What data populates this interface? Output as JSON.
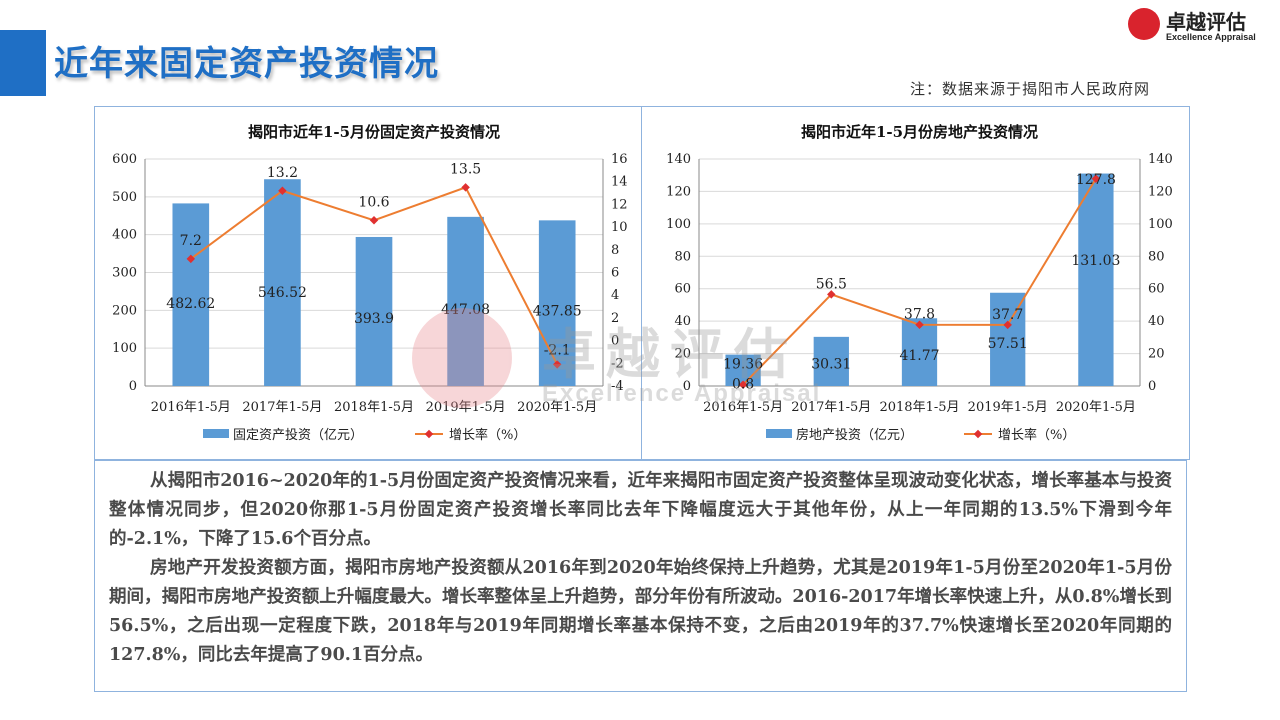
{
  "header": {
    "title": "近年来固定资产投资情况",
    "note": "注：数据来源于揭阳市人民政府网"
  },
  "logo": {
    "cn": "卓越评估",
    "en": "Excellence Appraisal",
    "icon": "logo-mark-icon"
  },
  "watermark": {
    "cn": "卓越评估",
    "en": "Excellence Appraisal"
  },
  "colors": {
    "accent": "#1f6fc5",
    "bar": "#5b9bd5",
    "line": "#ed7d31",
    "marker": "#e03030",
    "border": "#8fb3de"
  },
  "chart_data": [
    {
      "type": "bar",
      "title": "揭阳市近年1-5月份固定资产投资情况",
      "categories": [
        "2016年1-5月",
        "2017年1-5月",
        "2018年1-5月",
        "2019年1-5月",
        "2020年1-5月"
      ],
      "ylim": [
        0,
        600
      ],
      "yticks": [
        "0",
        "100",
        "200",
        "300",
        "400",
        "500",
        "600"
      ],
      "y2lim": [
        -4,
        16
      ],
      "y2ticks": [
        "-4",
        "-2",
        "0",
        "2",
        "4",
        "6",
        "8",
        "10",
        "12",
        "14",
        "16"
      ],
      "grid": true,
      "legend_position": "bottom",
      "series": [
        {
          "name": "固定资产投资（亿元）",
          "kind": "bar",
          "axis": "left",
          "values": [
            482.62,
            546.52,
            393.9,
            447.08,
            437.85
          ],
          "labels": [
            "482.62",
            "546.52",
            "393.9",
            "447.08",
            "437.85"
          ]
        },
        {
          "name": "增长率（%）",
          "kind": "line",
          "axis": "right",
          "values": [
            7.2,
            13.2,
            10.6,
            13.5,
            -2.1
          ],
          "labels": [
            "7.2",
            "13.2",
            "10.6",
            "13.5",
            "-2.1"
          ]
        }
      ]
    },
    {
      "type": "bar",
      "title": "揭阳市近年1-5月份房地产投资情况",
      "categories": [
        "2016年1-5月",
        "2017年1-5月",
        "2018年1-5月",
        "2019年1-5月",
        "2020年1-5月"
      ],
      "ylim": [
        0,
        140
      ],
      "yticks": [
        "0",
        "20",
        "40",
        "60",
        "80",
        "100",
        "120",
        "140"
      ],
      "y2lim": [
        0,
        140
      ],
      "y2ticks": [
        "0",
        "20",
        "40",
        "60",
        "80",
        "100",
        "120",
        "140"
      ],
      "grid": true,
      "legend_position": "bottom",
      "series": [
        {
          "name": "房地产投资（亿元）",
          "kind": "bar",
          "axis": "left",
          "values": [
            19.36,
            30.31,
            41.77,
            57.51,
            131.03
          ],
          "labels": [
            "19.36",
            "30.31",
            "41.77",
            "57.51",
            "131.03"
          ]
        },
        {
          "name": "增长率（%）",
          "kind": "line",
          "axis": "right",
          "values": [
            0.8,
            56.5,
            37.8,
            37.7,
            127.8
          ],
          "labels": [
            "0.8",
            "56.5",
            "37.8",
            "37.7",
            "127.8"
          ]
        }
      ]
    }
  ],
  "text": {
    "p1": "从揭阳市2016~2020年的1-5月份固定资产投资情况来看，近年来揭阳市固定资产投资整体呈现波动变化状态，增长率基本与投资整体情况同步，但2020你那1-5月份固定资产投资增长率同比去年下降幅度远大于其他年份，从上一年同期的13.5%下滑到今年的-2.1%，下降了15.6个百分点。",
    "p2": "房地产开发投资额方面，揭阳市房地产投资额从2016年到2020年始终保持上升趋势，尤其是2019年1-5月份至2020年1-5月份期间，揭阳市房地产投资额上升幅度最大。增长率整体呈上升趋势，部分年份有所波动。2016-2017年增长率快速上升，从0.8%增长到56.5%，之后出现一定程度下跌，2018年与2019年同期增长率基本保持不变，之后由2019年的37.7%快速增长至2020年同期的127.8%，同比去年提高了90.1百分点。"
  }
}
